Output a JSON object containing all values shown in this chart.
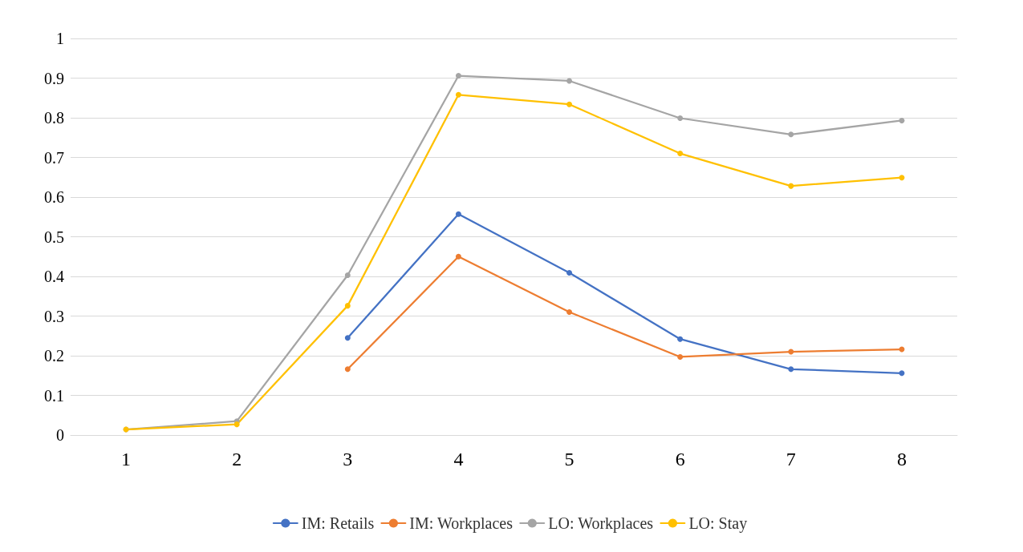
{
  "chart_data": {
    "type": "line",
    "categories": [
      "1",
      "2",
      "3",
      "4",
      "5",
      "6",
      "7",
      "8"
    ],
    "series": [
      {
        "name": "IM: Retails",
        "color": "#4472c4",
        "values": [
          null,
          null,
          0.245,
          0.557,
          0.409,
          0.242,
          0.166,
          0.156
        ]
      },
      {
        "name": "IM: Workplaces",
        "color": "#ed7d31",
        "values": [
          null,
          null,
          0.166,
          0.45,
          0.31,
          0.197,
          0.21,
          0.216
        ]
      },
      {
        "name": "LO: Workplaces",
        "color": "#a5a5a5",
        "values": [
          0.014,
          0.035,
          0.403,
          0.906,
          0.893,
          0.799,
          0.758,
          0.793
        ]
      },
      {
        "name": "LO: Stay",
        "color": "#ffc000",
        "values": [
          0.014,
          0.027,
          0.326,
          0.858,
          0.834,
          0.71,
          0.628,
          0.649
        ]
      }
    ],
    "ylim": [
      0,
      1
    ],
    "yticks": [
      0,
      0.1,
      0.2,
      0.3,
      0.4,
      0.5,
      0.6,
      0.7,
      0.8,
      0.9,
      1
    ],
    "grid": "y",
    "legend": "bottom",
    "marker": "circle",
    "line_style": "solid"
  }
}
